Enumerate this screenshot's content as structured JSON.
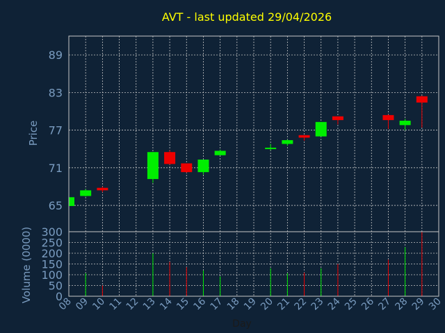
{
  "chart_data": {
    "type": "candlestick",
    "title": "AVT - last updated 29/04/2026",
    "price_label": "Price",
    "volume_label": "Volume (0000)",
    "xlabel": "Day",
    "x_ticks": [
      "08",
      "09",
      "10",
      "11",
      "12",
      "13",
      "14",
      "15",
      "16",
      "17",
      "18",
      "19",
      "20",
      "21",
      "22",
      "23",
      "24",
      "25",
      "26",
      "27",
      "28",
      "29",
      "30"
    ],
    "price_ticks": [
      65,
      71,
      77,
      83,
      89
    ],
    "price_range": [
      60.8,
      92.0
    ],
    "volume_ticks": [
      0,
      50,
      100,
      150,
      200,
      250,
      300
    ],
    "volume_range": [
      0,
      300
    ],
    "colors": {
      "up": "#00ee00",
      "down": "#ee0000",
      "grid": "#c8c8c8",
      "axis": "#7a9cc0",
      "title": "#ffff00",
      "background": "#0f2236"
    },
    "candles": [
      {
        "day": 8,
        "open": 64.9,
        "high": 66.4,
        "low": 64.9,
        "close": 66.3,
        "volume": 0
      },
      {
        "day": 9,
        "open": 66.5,
        "high": 67.6,
        "low": 66.4,
        "close": 67.4,
        "volume": 107
      },
      {
        "day": 10,
        "open": 67.8,
        "high": 68.0,
        "low": 67.1,
        "close": 67.4,
        "volume": 50
      },
      {
        "day": 13,
        "open": 69.2,
        "high": 73.5,
        "low": 68.6,
        "close": 73.5,
        "volume": 200
      },
      {
        "day": 14,
        "open": 73.5,
        "high": 73.8,
        "low": 71.5,
        "close": 71.6,
        "volume": 160
      },
      {
        "day": 15,
        "open": 71.7,
        "high": 71.7,
        "low": 70.2,
        "close": 70.3,
        "volume": 135
      },
      {
        "day": 16,
        "open": 70.3,
        "high": 72.3,
        "low": 69.9,
        "close": 72.3,
        "volume": 120
      },
      {
        "day": 17,
        "open": 73.0,
        "high": 73.9,
        "low": 73.0,
        "close": 73.7,
        "volume": 92
      },
      {
        "day": 20,
        "open": 74.0,
        "high": 74.8,
        "low": 73.8,
        "close": 74.2,
        "volume": 130
      },
      {
        "day": 21,
        "open": 74.8,
        "high": 75.5,
        "low": 74.5,
        "close": 75.4,
        "volume": 107
      },
      {
        "day": 22,
        "open": 76.2,
        "high": 76.2,
        "low": 75.3,
        "close": 75.8,
        "volume": 110
      },
      {
        "day": 23,
        "open": 76.0,
        "high": 78.3,
        "low": 76.0,
        "close": 78.3,
        "volume": 130
      },
      {
        "day": 24,
        "open": 79.2,
        "high": 79.2,
        "low": 77.9,
        "close": 78.6,
        "volume": 150
      },
      {
        "day": 27,
        "open": 79.4,
        "high": 79.5,
        "low": 77.2,
        "close": 78.6,
        "volume": 170
      },
      {
        "day": 28,
        "open": 77.8,
        "high": 78.8,
        "low": 77.0,
        "close": 78.5,
        "volume": 228
      },
      {
        "day": 29,
        "open": 82.4,
        "high": 82.5,
        "low": 77.4,
        "close": 81.4,
        "volume": 300
      }
    ]
  }
}
